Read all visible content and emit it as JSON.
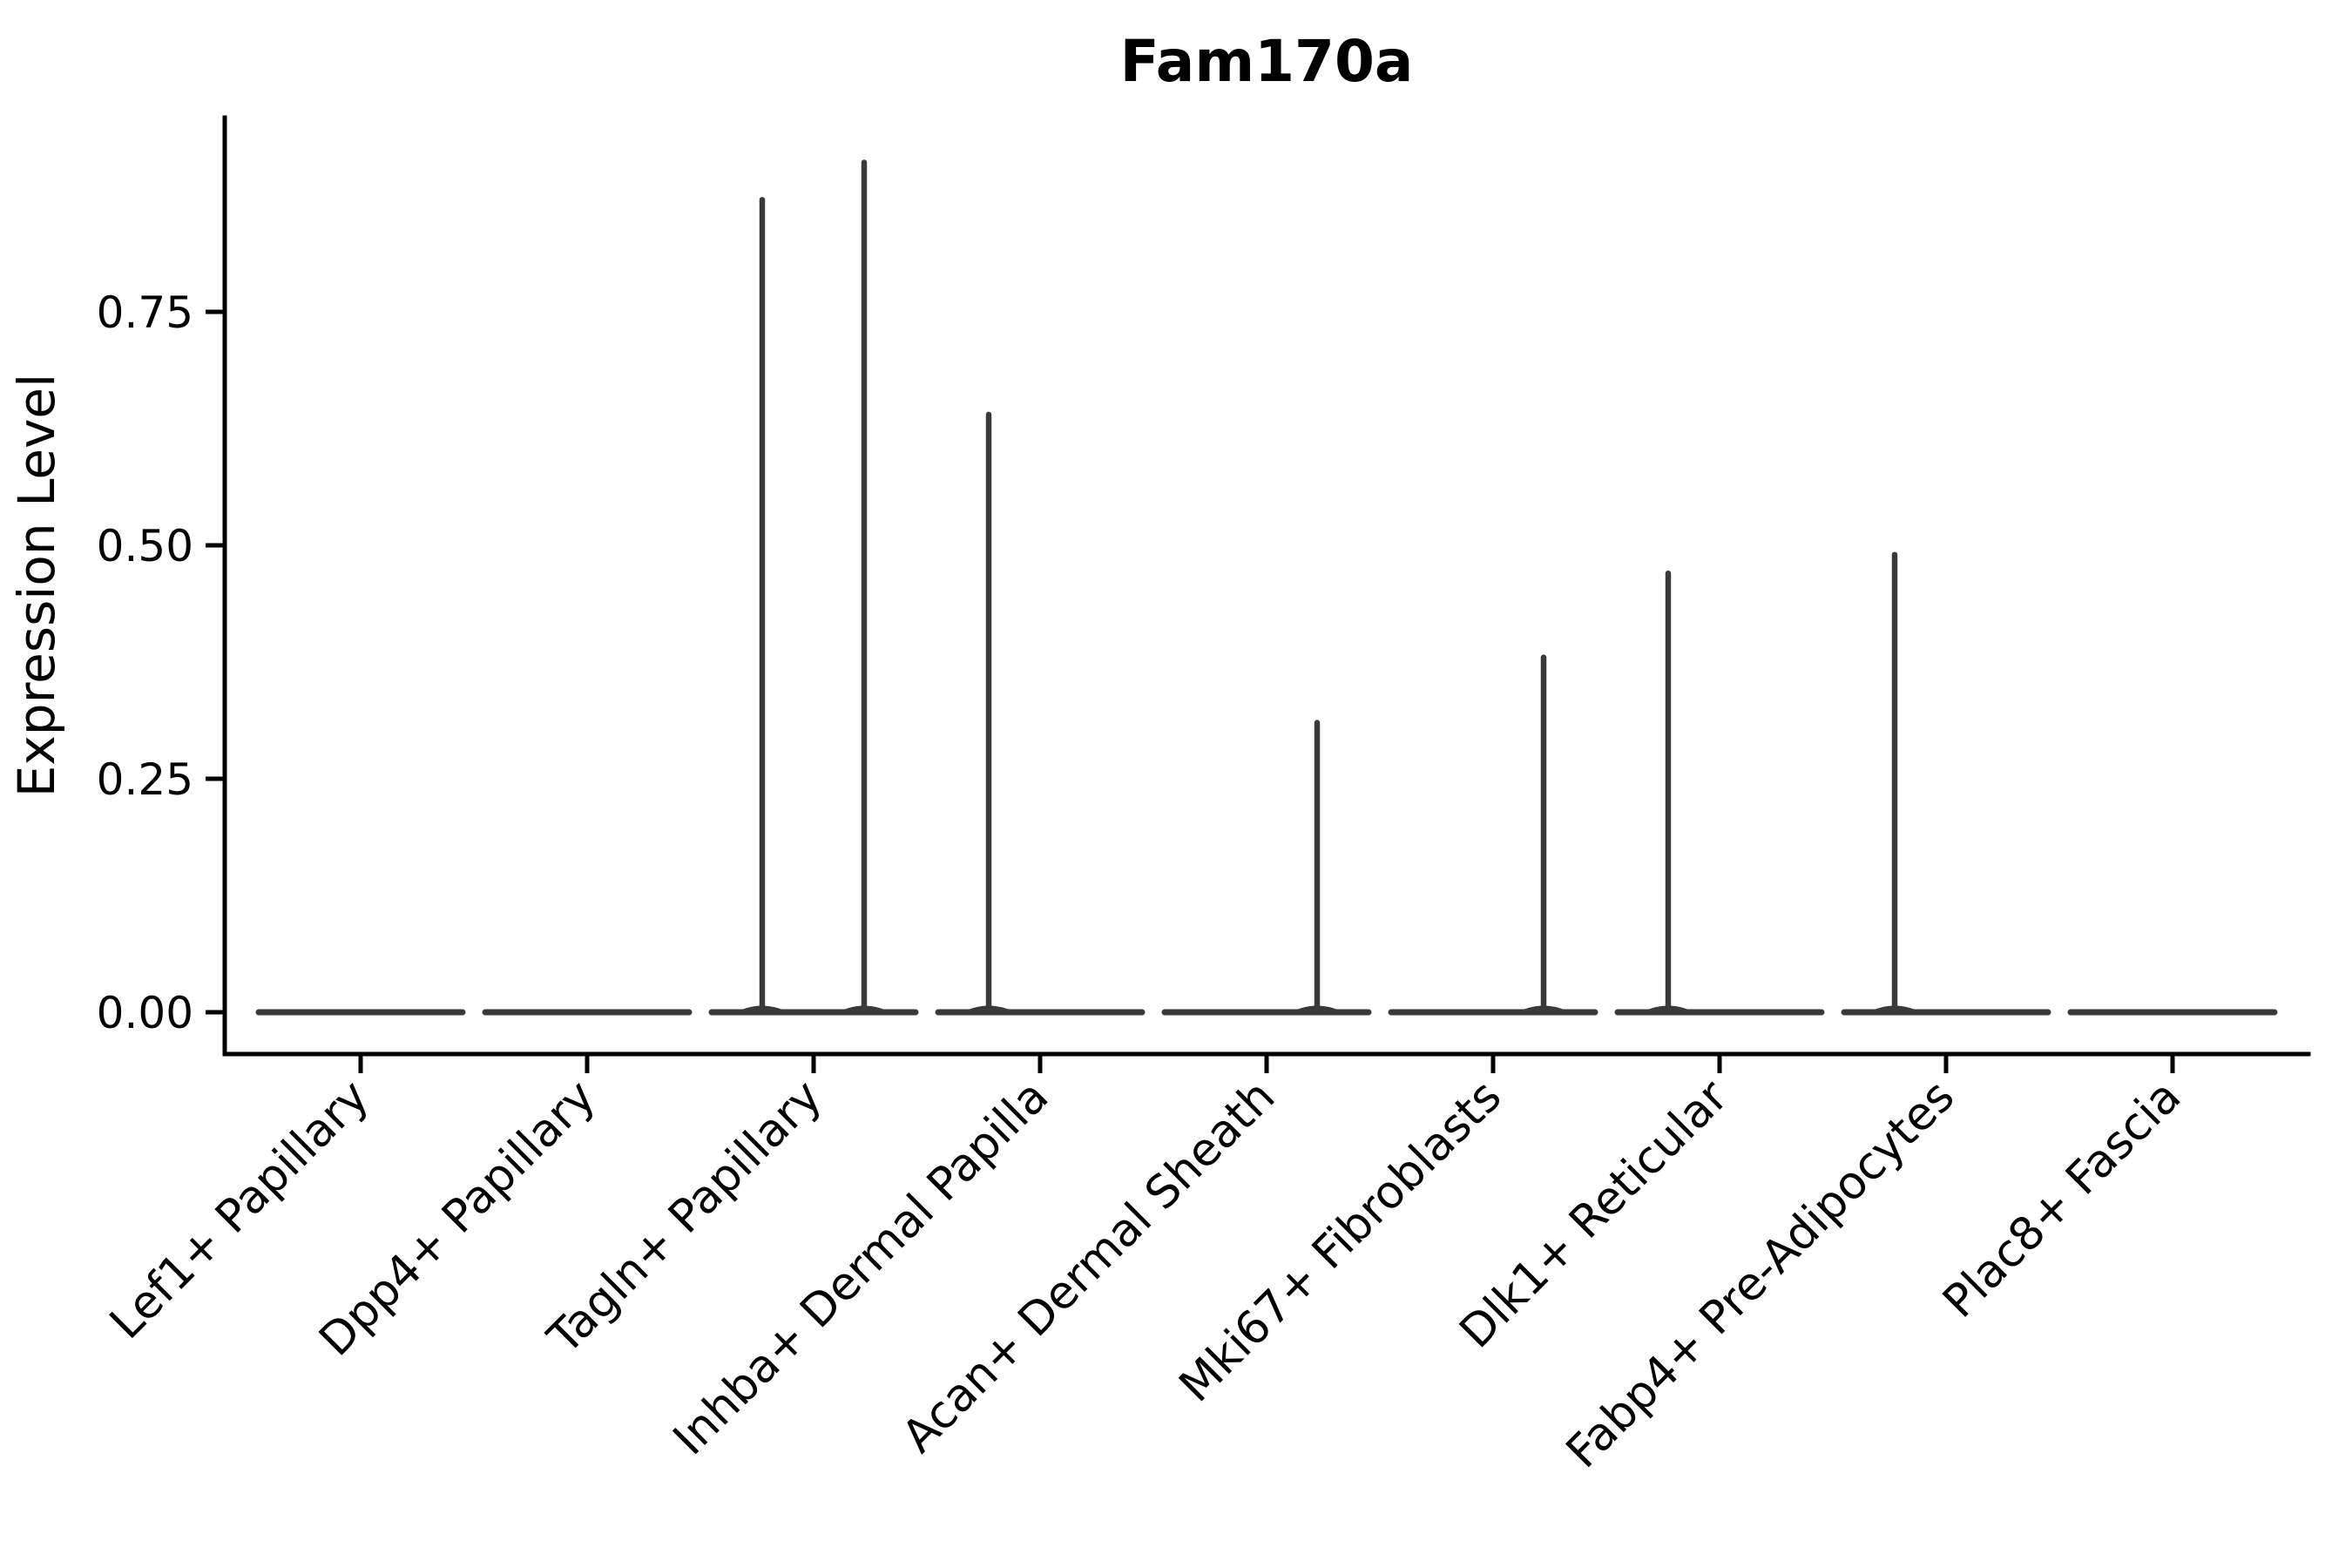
{
  "title": "Fam170a",
  "y_axis_label": "Expression Level",
  "colors": {
    "background": "#ffffff",
    "axis": "#000000",
    "text": "#000000",
    "violin_stroke": "#3a3a3a"
  },
  "chart_data": {
    "type": "violin",
    "title": "Fam170a",
    "xlabel": "",
    "ylabel": "Expression Level",
    "grid": false,
    "legend": null,
    "ylim": [
      0,
      0.958
    ],
    "yticks": [
      0,
      0.25,
      0.5,
      0.75
    ],
    "ytick_labels": [
      "0.00",
      "0.25",
      "0.50",
      "0.75"
    ],
    "x_tick_label_rotation_deg": 45,
    "categories": [
      "Lef1+ Papillary",
      "Dpp4+ Papillary",
      "Tagln+ Papillary",
      "Inhba+ Dermal Papilla",
      "Acan+ Dermal Sheath",
      "Mki67+ Fibroblasts",
      "Dlk1+ Reticular",
      "Fabp4+ Pre-Adipocytes",
      "Plac8+ Fascia"
    ],
    "violins": [
      {
        "category": "Lef1+ Papillary",
        "zero_baseline": true,
        "spikes": []
      },
      {
        "category": "Dpp4+ Papillary",
        "zero_baseline": true,
        "spikes": []
      },
      {
        "category": "Tagln+ Papillary",
        "zero_baseline": true,
        "spikes": [
          {
            "side": "left",
            "max": 0.87
          },
          {
            "side": "right",
            "max": 0.91
          }
        ]
      },
      {
        "category": "Inhba+ Dermal Papilla",
        "zero_baseline": true,
        "spikes": [
          {
            "side": "left",
            "max": 0.64
          }
        ]
      },
      {
        "category": "Acan+ Dermal Sheath",
        "zero_baseline": true,
        "spikes": [
          {
            "side": "right",
            "max": 0.31
          }
        ]
      },
      {
        "category": "Mki67+ Fibroblasts",
        "zero_baseline": true,
        "spikes": [
          {
            "side": "right",
            "max": 0.38
          }
        ]
      },
      {
        "category": "Dlk1+ Reticular",
        "zero_baseline": true,
        "spikes": [
          {
            "side": "left",
            "max": 0.47
          }
        ]
      },
      {
        "category": "Fabp4+ Pre-Adipocytes",
        "zero_baseline": true,
        "spikes": [
          {
            "side": "left",
            "max": 0.49
          }
        ]
      },
      {
        "category": "Plac8+ Fascia",
        "zero_baseline": true,
        "spikes": []
      }
    ],
    "spike_x_offsets": {
      "left": -59,
      "right": 58
    }
  }
}
